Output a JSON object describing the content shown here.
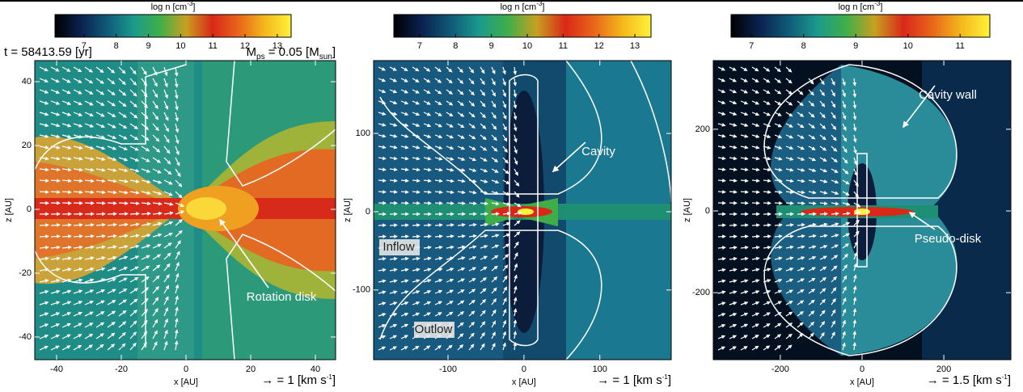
{
  "chart_data": [
    {
      "type": "density-map",
      "colorbar_label": {
        "text": "log n [cm",
        "sup": "-3",
        "close": "]"
      },
      "clim": [
        6.1,
        13.43
      ],
      "cticks": [
        7,
        8,
        9,
        10,
        11,
        12,
        13
      ],
      "colormap": [
        "#000000",
        "#0b2250",
        "#0f5a78",
        "#1b9a8c",
        "#3fae4a",
        "#c8a020",
        "#d92818",
        "#e8661a",
        "#f3b81c",
        "#fff23a"
      ],
      "time_label": "t = 58413.59 [yr]",
      "mass_label": {
        "symbol": "M",
        "sub": "ps",
        "text": " = 0.05 [M",
        "unit_sub": "sun",
        "close": "]"
      },
      "xlabel": "x [AU]",
      "ylabel": "z [AU]",
      "xlim": [
        -46.75,
        46.25
      ],
      "xticks": [
        -40,
        -20,
        0,
        20,
        40
      ],
      "ylim": [
        -47.1,
        46.6
      ],
      "yticks": [
        -40,
        -20,
        0,
        20,
        40
      ],
      "vector_key": {
        "text": "→ = 1 [km s",
        "sup": "-1",
        "close": "]"
      },
      "annotations": [
        "Rotation disk"
      ]
    },
    {
      "type": "density-map",
      "colorbar_label": {
        "text": "log n [cm",
        "sup": "-3",
        "close": "]"
      },
      "clim": [
        6.28,
        13.45
      ],
      "cticks": [
        7,
        8,
        9,
        10,
        11,
        12,
        13
      ],
      "colormap": [
        "#000000",
        "#0b2250",
        "#0f5a78",
        "#1b9a8c",
        "#3fae4a",
        "#c8a020",
        "#d92818",
        "#e8661a",
        "#f3b81c",
        "#fff23a"
      ],
      "xlabel": "x [AU]",
      "ylabel": "z [AU]",
      "xlim": [
        -198,
        194
      ],
      "xticks": [
        -100,
        0,
        100
      ],
      "ylim": [
        -189,
        193
      ],
      "yticks": [
        -100,
        0,
        100
      ],
      "vector_key": {
        "text": "→ = 1 [km s",
        "sup": "-1",
        "close": "]"
      },
      "annotations": [
        "Cavity",
        "Inflow",
        "Outlow"
      ]
    },
    {
      "type": "density-map",
      "colorbar_label": {
        "text": "log n [cm",
        "sup": "-3",
        "close": "]"
      },
      "clim": [
        6.61,
        11.57
      ],
      "cticks": [
        7,
        8,
        9,
        10,
        11
      ],
      "colormap": [
        "#000000",
        "#0b2250",
        "#0f5a78",
        "#1b9a8c",
        "#3fae4a",
        "#c8a020",
        "#d92818",
        "#e8661a",
        "#f3b81c",
        "#fff23a"
      ],
      "xlabel": "x [AU]",
      "ylabel": "z [AU]",
      "xlim": [
        -364,
        364
      ],
      "xticks": [
        -200,
        0,
        200
      ],
      "ylim": [
        -364,
        368
      ],
      "yticks": [
        -200,
        0,
        200
      ],
      "vector_key": {
        "text": "→ = 1.5 [km s",
        "sup": "-1",
        "close": "]"
      },
      "annotations": [
        "Cavity wall",
        "Pseudo-disk"
      ]
    }
  ]
}
